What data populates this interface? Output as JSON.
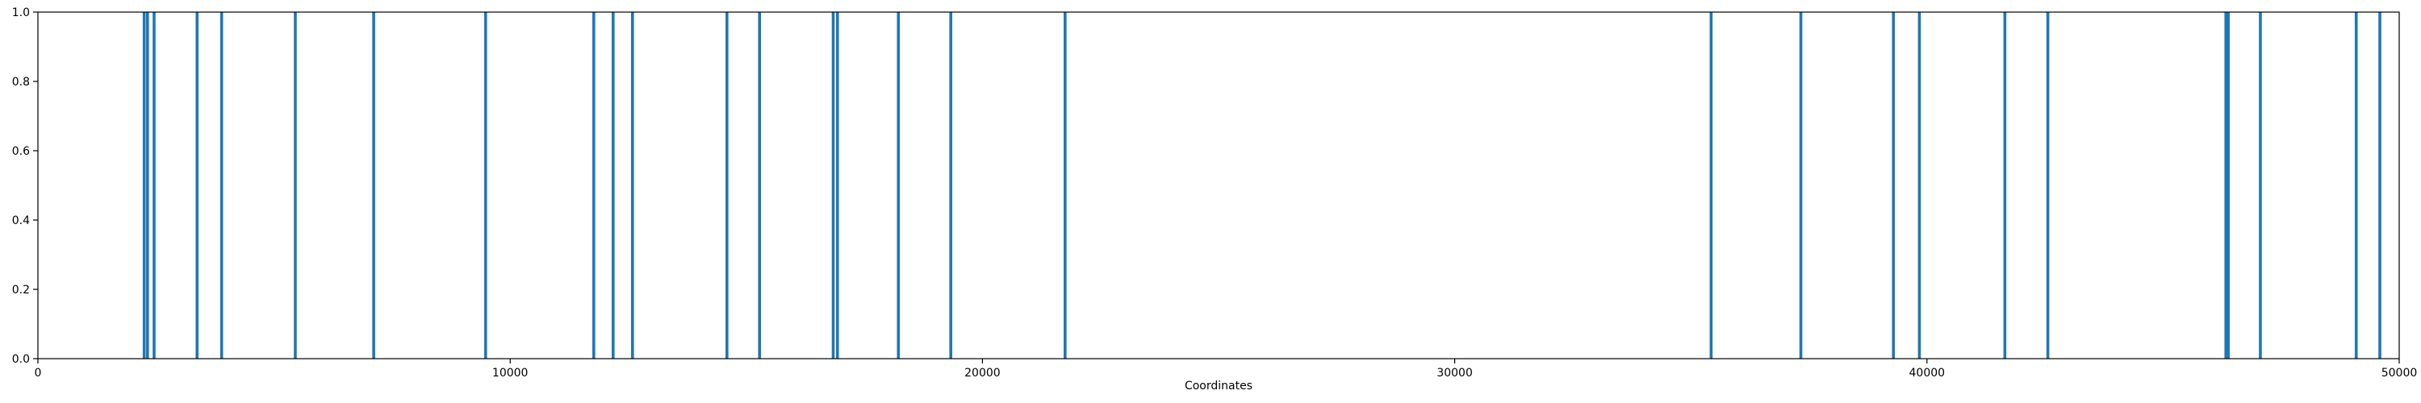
{
  "chart_data": {
    "type": "bar",
    "title": "",
    "xlabel": "Coordinates",
    "ylabel": "",
    "xlim": [
      0,
      50000
    ],
    "ylim": [
      0,
      1.0
    ],
    "grid": false,
    "x_ticks": [
      0,
      10000,
      20000,
      30000,
      40000,
      50000
    ],
    "x_tick_labels": [
      "0",
      "10000",
      "20000",
      "30000",
      "40000",
      "50000"
    ],
    "y_ticks": [
      0.0,
      0.2,
      0.4,
      0.6,
      0.8,
      1.0
    ],
    "y_tick_labels": [
      "0.0",
      "0.2",
      "0.4",
      "0.6",
      "0.8",
      "1.0"
    ],
    "series": [
      {
        "color": "#1f77b4",
        "x": [
          2250,
          2320,
          2460,
          3370,
          3890,
          5450,
          7110,
          9480,
          11770,
          12180,
          12590,
          14590,
          15280,
          16840,
          16930,
          18220,
          19330,
          21750,
          35430,
          37330,
          39290,
          39840,
          41650,
          42560,
          46330,
          46380,
          47060,
          49090,
          49590
        ],
        "values": [
          1,
          1,
          1,
          1,
          1,
          1,
          1,
          1,
          1,
          1,
          1,
          1,
          1,
          1,
          1,
          1,
          1,
          1,
          1,
          1,
          1,
          1,
          1,
          1,
          1,
          1,
          1,
          1,
          1
        ]
      }
    ]
  }
}
